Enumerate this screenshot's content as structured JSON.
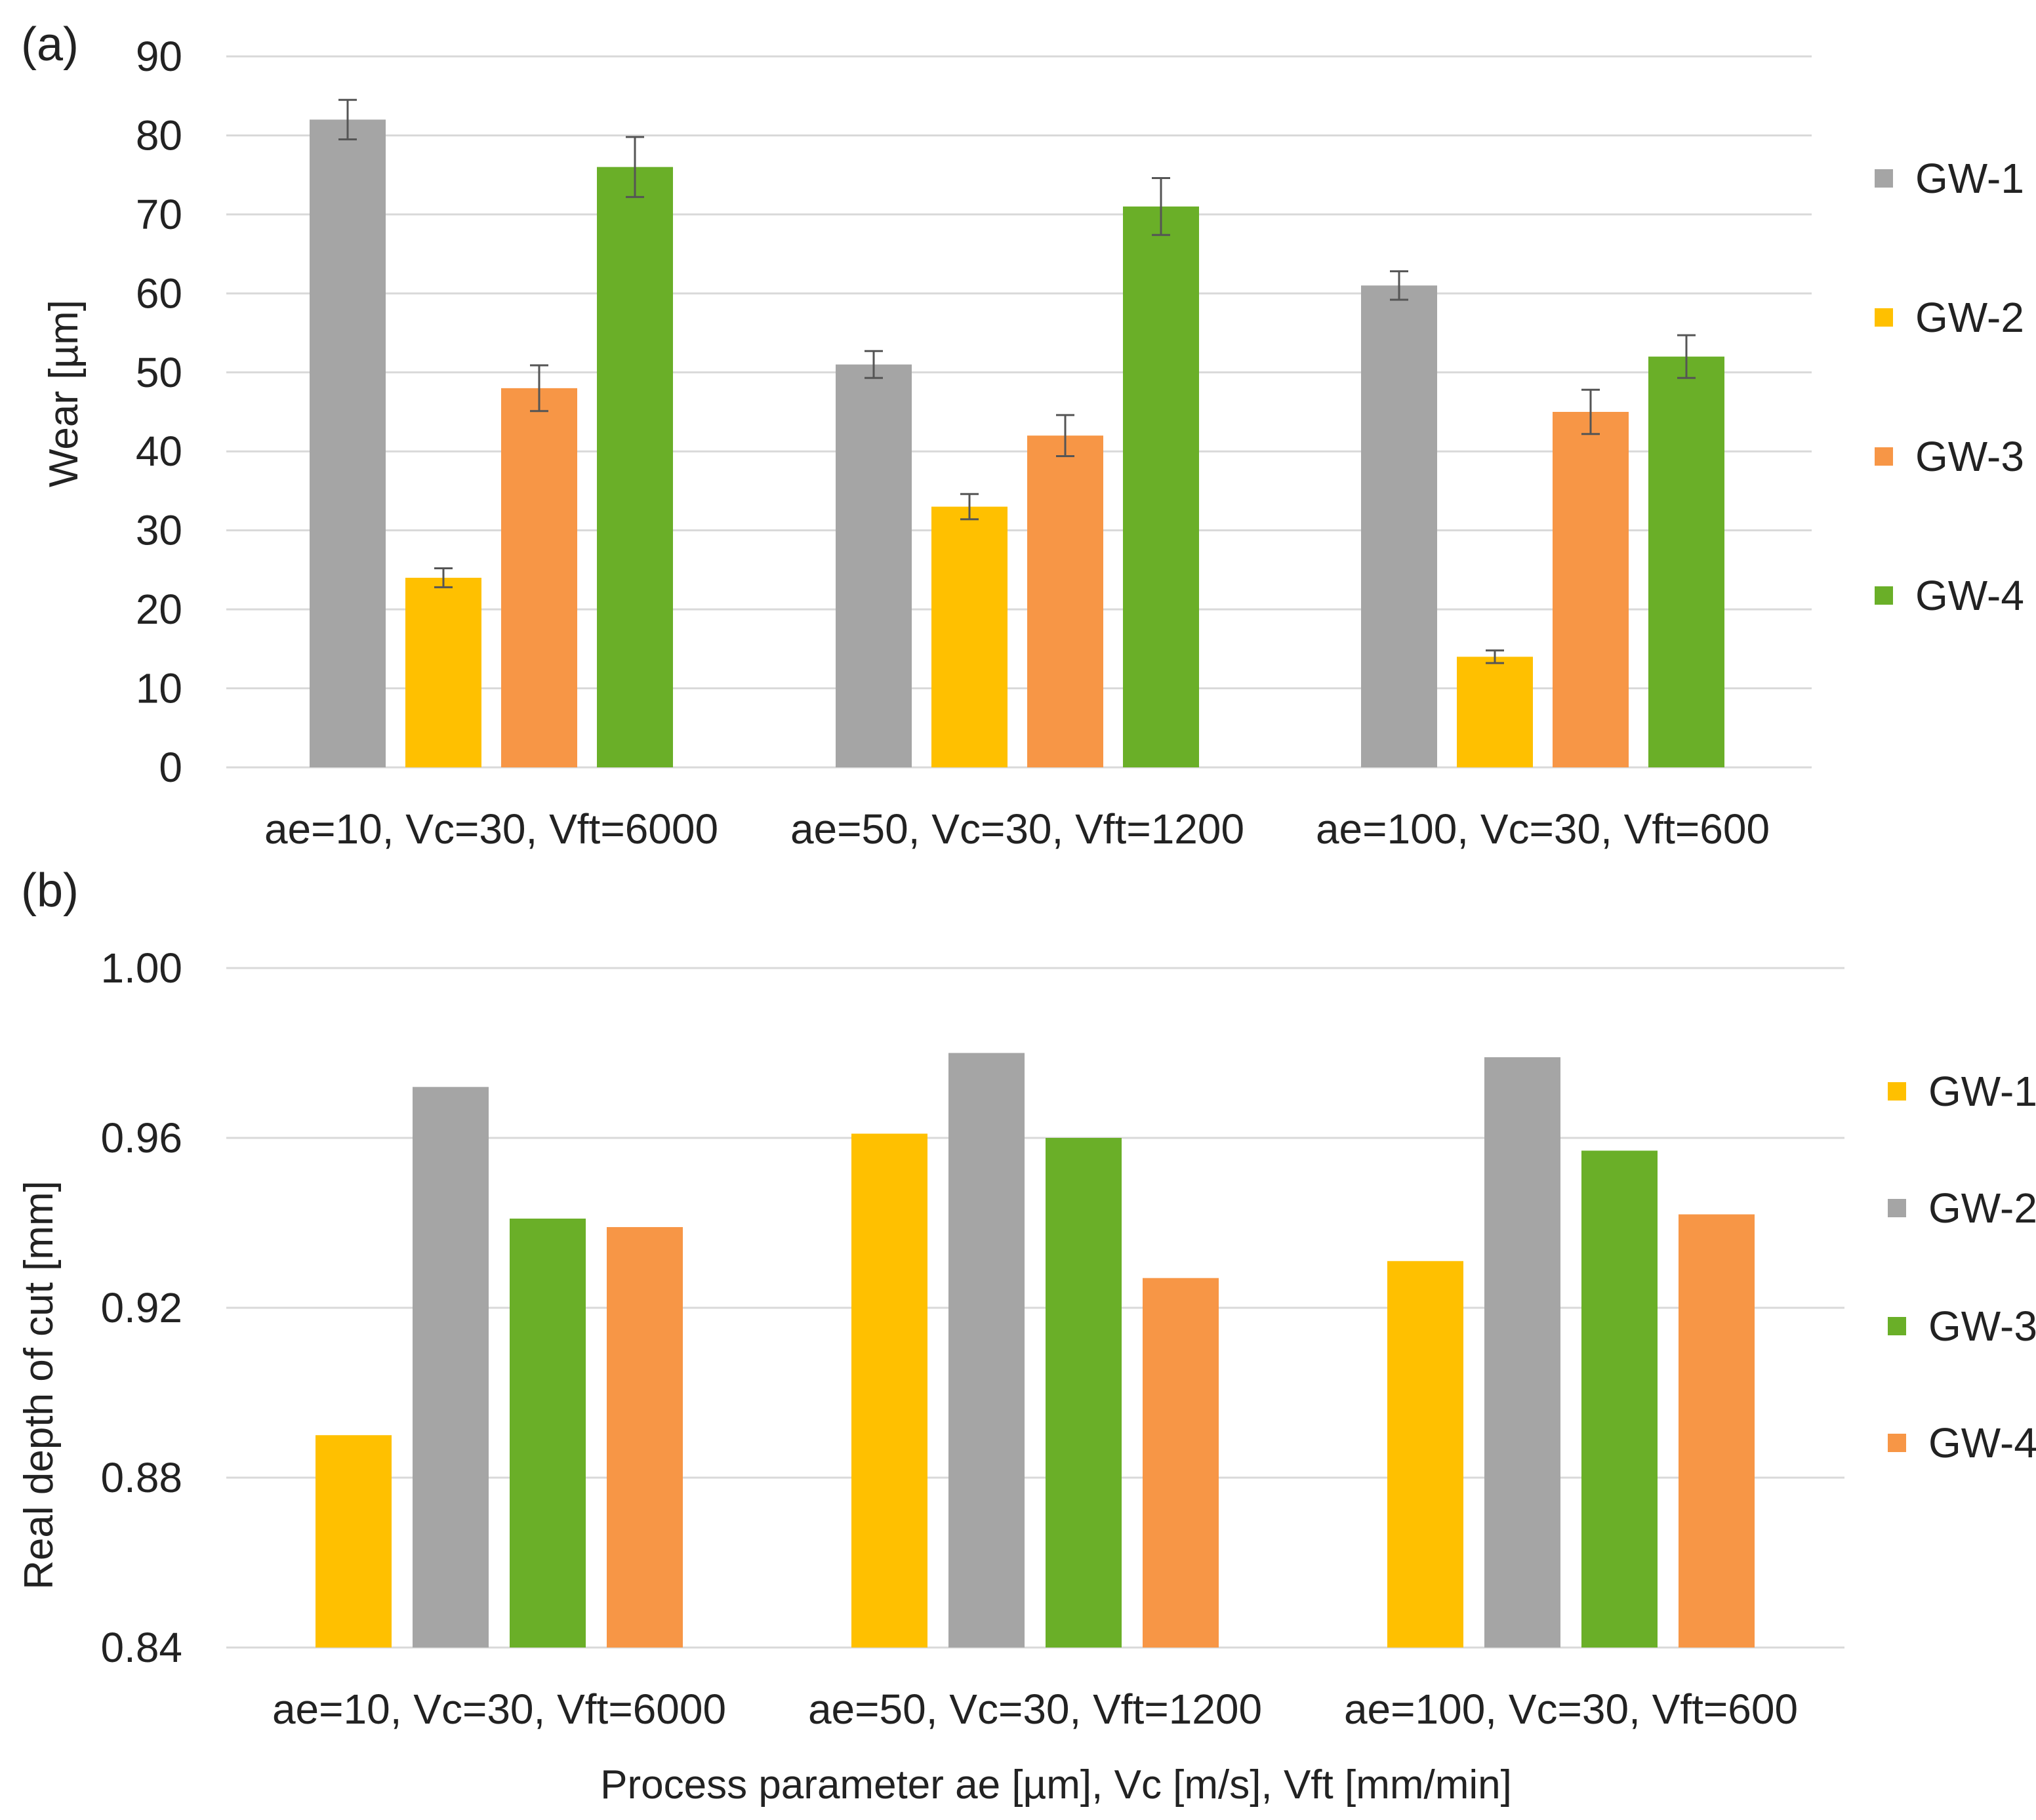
{
  "figure": {
    "xlabel": "Process parameter ae [µm], Vc [m/s], Vft [mm/min]"
  },
  "chart_data": [
    {
      "panel": "(a)",
      "type": "bar",
      "title": "",
      "xlabel": "",
      "ylabel": "Wear [µm]",
      "ylim": [
        0,
        90
      ],
      "yticks": [
        0,
        10,
        20,
        30,
        40,
        50,
        60,
        70,
        80,
        90
      ],
      "ytick_labels": [
        "0",
        "10",
        "20",
        "30",
        "40",
        "50",
        "60",
        "70",
        "80",
        "90"
      ],
      "grid": true,
      "legend_position": "right",
      "categories": [
        "ae=10, Vc=30, Vft=6000",
        "ae=50, Vc=30, Vft=1200",
        "ae=100, Vc=30, Vft=600"
      ],
      "series": [
        {
          "name": "GW-1",
          "color": "#a5a5a5",
          "values": [
            82,
            51,
            61
          ],
          "errors": [
            2.5,
            1.7,
            1.8
          ]
        },
        {
          "name": "GW-2",
          "color": "#ffc000",
          "values": [
            24,
            33,
            14
          ],
          "errors": [
            1.2,
            1.6,
            0.8
          ]
        },
        {
          "name": "GW-3",
          "color": "#f79646",
          "values": [
            48,
            42,
            45
          ],
          "errors": [
            2.9,
            2.6,
            2.8
          ]
        },
        {
          "name": "GW-4",
          "color": "#6aaf28",
          "values": [
            76,
            71,
            52
          ],
          "errors": [
            3.8,
            3.6,
            2.7
          ]
        }
      ]
    },
    {
      "panel": "(b)",
      "type": "bar",
      "title": "",
      "xlabel": "Process parameter ae [µm], Vc [m/s], Vft [mm/min]",
      "ylabel": "Real depth of cut [mm]",
      "ylim": [
        0.84,
        1.0
      ],
      "yticks": [
        0.84,
        0.88,
        0.92,
        0.96,
        1.0
      ],
      "ytick_labels": [
        "0.84",
        "0.88",
        "0.92",
        "0.96",
        "1.00"
      ],
      "grid": true,
      "legend_position": "right",
      "categories": [
        "ae=10, Vc=30, Vft=6000",
        "ae=50, Vc=30, Vft=1200",
        "ae=100, Vc=30, Vft=600"
      ],
      "series": [
        {
          "name": "GW-1",
          "color": "#ffc000",
          "values": [
            0.89,
            0.961,
            0.931
          ]
        },
        {
          "name": "GW-2",
          "color": "#a5a5a5",
          "values": [
            0.972,
            0.98,
            0.979
          ]
        },
        {
          "name": "GW-3",
          "color": "#6aaf28",
          "values": [
            0.941,
            0.96,
            0.957
          ]
        },
        {
          "name": "GW-4",
          "color": "#f79646",
          "values": [
            0.939,
            0.927,
            0.942
          ]
        }
      ]
    }
  ]
}
